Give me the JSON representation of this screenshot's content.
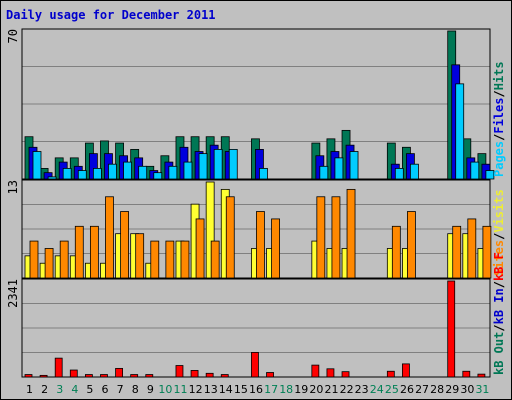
{
  "chart_data": {
    "type": "bar",
    "title": "Daily usage for December 2011",
    "categories": [
      "1",
      "2",
      "3",
      "4",
      "5",
      "6",
      "7",
      "8",
      "9",
      "10",
      "11",
      "12",
      "13",
      "14",
      "15",
      "16",
      "17",
      "18",
      "19",
      "20",
      "21",
      "22",
      "23",
      "24",
      "25",
      "26",
      "27",
      "28",
      "29",
      "30",
      "31"
    ],
    "weekend_days": [
      "3",
      "4",
      "10",
      "11",
      "17",
      "18",
      "24",
      "25",
      "31"
    ],
    "colors": {
      "Hits": "#007755",
      "Files": "#0000dd",
      "Pages": "#00ccff",
      "Visits": "#ffff33",
      "Sites": "#ff8800",
      "kB F": "#ff0000",
      "kB In": "#0000cc",
      "kB Out": "#007755",
      "weekday_label": "#000000",
      "weekend_label": "#008055",
      "title": "#0000cc",
      "background": "#c0c0c0",
      "plot": "#c0c0c0"
    },
    "panels": [
      {
        "id": "hits",
        "scale_label": "70",
        "ymax": 70,
        "legend": [
          {
            "text": "Hits",
            "color": "#007755"
          },
          {
            "text": "/",
            "color": "#000000"
          },
          {
            "text": "Files",
            "color": "#0000dd"
          },
          {
            "text": "/",
            "color": "#000000"
          },
          {
            "text": "Pages",
            "color": "#00ccff"
          }
        ],
        "series": [
          {
            "name": "Hits",
            "values": [
              20,
              5,
              10,
              10,
              17,
              18,
              17,
              14,
              6,
              11,
              20,
              20,
              20,
              20,
              0,
              19,
              0,
              0,
              0,
              17,
              19,
              23,
              0,
              0,
              17,
              15,
              0,
              0,
              70,
              19,
              12
            ]
          },
          {
            "name": "Files",
            "values": [
              15,
              3,
              8,
              6,
              12,
              12,
              11,
              10,
              4,
              8,
              15,
              13,
              16,
              13,
              0,
              14,
              0,
              0,
              0,
              11,
              13,
              16,
              0,
              0,
              7,
              12,
              0,
              0,
              54,
              10,
              7
            ]
          },
          {
            "name": "Pages",
            "values": [
              13,
              1,
              5,
              4,
              5,
              7,
              8,
              6,
              3,
              6,
              8,
              12,
              14,
              14,
              0,
              5,
              0,
              0,
              0,
              6,
              10,
              13,
              0,
              0,
              5,
              7,
              0,
              0,
              45,
              8,
              4
            ]
          }
        ]
      },
      {
        "id": "visits",
        "scale_label": "13",
        "ymax": 13,
        "legend": [
          {
            "text": "Visits",
            "color": "#eeee33"
          },
          {
            "text": "/",
            "color": "#000000"
          },
          {
            "text": "Sites",
            "color": "#ff8800"
          }
        ],
        "series": [
          {
            "name": "Visits",
            "values": [
              3,
              2,
              3,
              3,
              2,
              2,
              6,
              6,
              2,
              0,
              5,
              10,
              13,
              12,
              0,
              4,
              4,
              0,
              0,
              5,
              4,
              4,
              0,
              0,
              4,
              4,
              0,
              0,
              6,
              6,
              4
            ]
          },
          {
            "name": "Sites",
            "values": [
              5,
              4,
              5,
              7,
              7,
              11,
              9,
              6,
              5,
              5,
              5,
              8,
              5,
              11,
              0,
              9,
              8,
              0,
              0,
              11,
              11,
              12,
              0,
              0,
              7,
              9,
              0,
              0,
              7,
              8,
              7
            ]
          }
        ]
      },
      {
        "id": "kbytes",
        "scale_label": "2341",
        "ymax": 2341,
        "legend": [
          {
            "text": "kB F",
            "color": "#ff0000"
          },
          {
            "text": "/",
            "color": "#000000"
          },
          {
            "text": "kB In",
            "color": "#0000cc"
          },
          {
            "text": "/",
            "color": "#000000"
          },
          {
            "text": "kB Out",
            "color": "#007755"
          }
        ],
        "series": [
          {
            "name": "kB F",
            "values": [
              60,
              40,
              460,
              170,
              60,
              60,
              210,
              60,
              60,
              0,
              280,
              160,
              90,
              60,
              0,
              600,
              110,
              0,
              0,
              290,
              200,
              130,
              0,
              0,
              140,
              320,
              0,
              0,
              2341,
              140,
              70
            ]
          },
          {
            "name": "kB In",
            "values": [
              0,
              0,
              0,
              0,
              0,
              0,
              0,
              0,
              0,
              0,
              0,
              0,
              0,
              0,
              0,
              0,
              0,
              0,
              0,
              0,
              0,
              0,
              0,
              0,
              0,
              0,
              0,
              0,
              0,
              0,
              0
            ]
          },
          {
            "name": "kB Out",
            "values": [
              0,
              0,
              0,
              0,
              0,
              0,
              0,
              0,
              0,
              0,
              0,
              0,
              0,
              0,
              0,
              0,
              0,
              0,
              0,
              0,
              0,
              0,
              0,
              0,
              0,
              0,
              0,
              0,
              0,
              0,
              0
            ]
          }
        ]
      }
    ]
  }
}
